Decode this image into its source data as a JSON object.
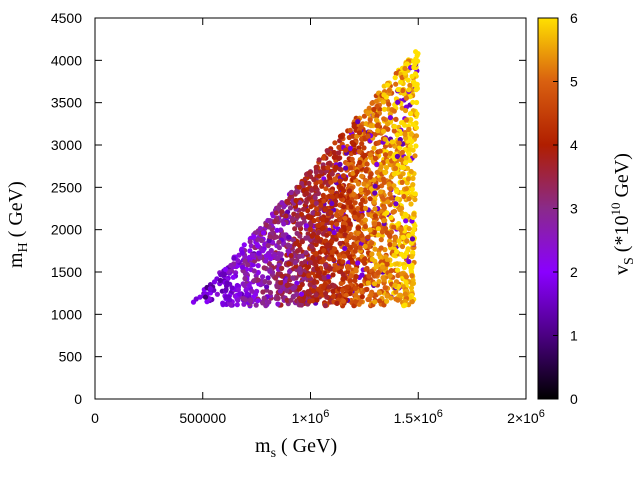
{
  "chart_data": {
    "type": "scatter",
    "title": "",
    "xlabel": {
      "main": "m",
      "sub": "s",
      "rest": " (  GeV)"
    },
    "ylabel": {
      "main": "m",
      "sub": "H",
      "rest": " ( GeV)"
    },
    "colorbar_label": {
      "main": "v",
      "sub": "S",
      "pre": " (*10",
      "sup": "10",
      "post": " GeV)"
    },
    "xlim": [
      0,
      2000000
    ],
    "ylim": [
      0,
      4500
    ],
    "clim": [
      0,
      6
    ],
    "x_ticks": [
      {
        "value": 0,
        "label": "0"
      },
      {
        "value": 500000,
        "label": "500000"
      },
      {
        "value": 1000000,
        "base": "1×10",
        "exp": "6"
      },
      {
        "value": 1500000,
        "base": "1.5×10",
        "exp": "6"
      },
      {
        "value": 2000000,
        "base": "2×10",
        "exp": "6"
      }
    ],
    "y_ticks": [
      {
        "value": 0,
        "label": "0"
      },
      {
        "value": 500,
        "label": "500"
      },
      {
        "value": 1000,
        "label": "1000"
      },
      {
        "value": 1500,
        "label": "1500"
      },
      {
        "value": 2000,
        "label": "2000"
      },
      {
        "value": 2500,
        "label": "2500"
      },
      {
        "value": 3000,
        "label": "3000"
      },
      {
        "value": 3500,
        "label": "3500"
      },
      {
        "value": 4000,
        "label": "4000"
      },
      {
        "value": 4500,
        "label": "4500"
      }
    ],
    "cb_ticks": [
      "0",
      "1",
      "2",
      "3",
      "4",
      "5",
      "6"
    ],
    "palette": [
      "#000000",
      "#4b0082",
      "#8a00ff",
      "#8a2a8a",
      "#b01e00",
      "#d96010",
      "#ffe000"
    ],
    "region": {
      "description": "points fill a triangular region; vS increases with m_s",
      "vertices_ms_mH": [
        [
          440000,
          1100
        ],
        [
          1480000,
          1100
        ],
        [
          1500000,
          4150
        ]
      ],
      "point_count": 2400
    }
  }
}
